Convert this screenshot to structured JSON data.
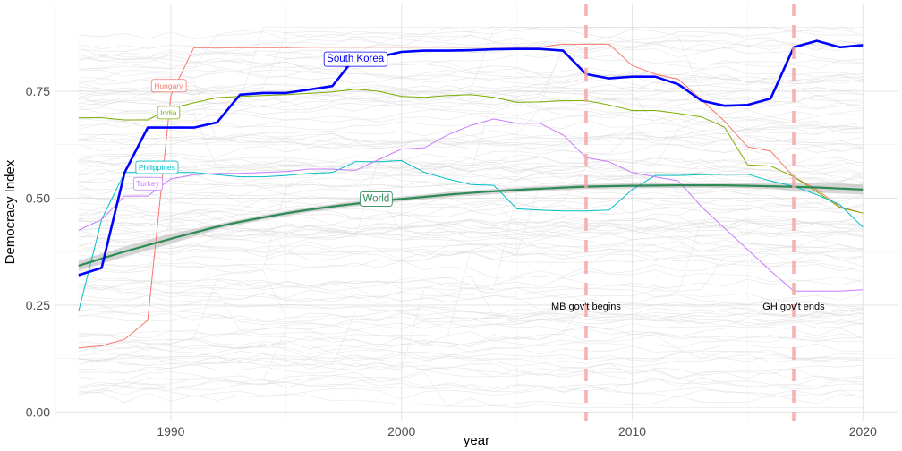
{
  "chart_data": {
    "type": "line",
    "title": "",
    "xlabel": "year",
    "ylabel": "Democracy Index",
    "xlim": [
      1985,
      2021.5
    ],
    "ylim": [
      -0.02,
      0.955
    ],
    "x_ticks": [
      1990,
      2000,
      2010,
      2020
    ],
    "y_ticks": [
      0.0,
      0.25,
      0.5,
      0.75
    ],
    "y_tick_labels": [
      "0.00",
      "0.25",
      "0.50",
      "0.75"
    ],
    "grid": true,
    "legend": "none",
    "colors": {
      "south_korea": "#0000ff",
      "world": "#2e8b57",
      "hungary": "#f8766d",
      "india": "#7cae00",
      "philippines": "#00bfc4",
      "turkey": "#c77cff",
      "background": "#e3e3e3",
      "vline": "#f4a6a6"
    },
    "series": [
      {
        "name": "South Korea",
        "color": "#0000ff",
        "highlight": true,
        "x": [
          1986,
          1987,
          1988,
          1989,
          1990,
          1991,
          1992,
          1993,
          1994,
          1995,
          1996,
          1997,
          1998,
          1999,
          2000,
          2001,
          2002,
          2003,
          2004,
          2005,
          2006,
          2007,
          2008,
          2009,
          2010,
          2011,
          2012,
          2013,
          2014,
          2015,
          2016,
          2017,
          2018,
          2019,
          2020
        ],
        "values": [
          0.32,
          0.337,
          0.56,
          0.665,
          0.665,
          0.665,
          0.677,
          0.742,
          0.746,
          0.746,
          0.754,
          0.762,
          0.83,
          0.83,
          0.842,
          0.845,
          0.845,
          0.846,
          0.848,
          0.849,
          0.849,
          0.845,
          0.79,
          0.78,
          0.784,
          0.784,
          0.766,
          0.728,
          0.716,
          0.718,
          0.733,
          0.853,
          0.868,
          0.853,
          0.858
        ]
      },
      {
        "name": "Hungary",
        "color": "#f8766d",
        "x": [
          1986,
          1987,
          1988,
          1989,
          1990,
          1991,
          1992,
          1993,
          1994,
          1995,
          1996,
          1997,
          1998,
          1999,
          2000,
          2001,
          2002,
          2003,
          2004,
          2005,
          2006,
          2007,
          2008,
          2009,
          2010,
          2011,
          2012,
          2013,
          2014,
          2015,
          2016,
          2017,
          2018,
          2019,
          2020
        ],
        "values": [
          0.15,
          0.155,
          0.17,
          0.215,
          0.74,
          0.852,
          0.852,
          0.852,
          0.852,
          0.852,
          0.853,
          0.853,
          0.853,
          0.853,
          0.853,
          0.853,
          0.853,
          0.853,
          0.853,
          0.853,
          0.853,
          0.86,
          0.86,
          0.86,
          0.81,
          0.79,
          0.778,
          0.73,
          0.68,
          0.62,
          0.61,
          0.55,
          0.52,
          0.48,
          0.465
        ]
      },
      {
        "name": "India",
        "color": "#7cae00",
        "x": [
          1986,
          1987,
          1988,
          1989,
          1990,
          1991,
          1992,
          1993,
          1994,
          1995,
          1996,
          1997,
          1998,
          1999,
          2000,
          2001,
          2002,
          2003,
          2004,
          2005,
          2006,
          2007,
          2008,
          2009,
          2010,
          2011,
          2012,
          2013,
          2014,
          2015,
          2016,
          2017,
          2018,
          2019,
          2020
        ],
        "values": [
          0.688,
          0.688,
          0.683,
          0.683,
          0.71,
          0.723,
          0.735,
          0.738,
          0.74,
          0.742,
          0.745,
          0.748,
          0.755,
          0.75,
          0.738,
          0.736,
          0.74,
          0.742,
          0.736,
          0.724,
          0.725,
          0.728,
          0.728,
          0.718,
          0.705,
          0.705,
          0.698,
          0.69,
          0.666,
          0.578,
          0.575,
          0.55,
          0.515,
          0.478,
          0.465
        ]
      },
      {
        "name": "Philippines",
        "color": "#00bfc4",
        "x": [
          1986,
          1987,
          1988,
          1989,
          1990,
          1991,
          1992,
          1993,
          1994,
          1995,
          1996,
          1997,
          1998,
          1999,
          2000,
          2001,
          2002,
          2003,
          2004,
          2005,
          2006,
          2007,
          2008,
          2009,
          2010,
          2011,
          2012,
          2013,
          2014,
          2015,
          2016,
          2017,
          2018,
          2019,
          2020
        ],
        "values": [
          0.235,
          0.45,
          0.56,
          0.56,
          0.56,
          0.56,
          0.555,
          0.55,
          0.55,
          0.553,
          0.558,
          0.56,
          0.585,
          0.585,
          0.588,
          0.56,
          0.545,
          0.532,
          0.53,
          0.475,
          0.472,
          0.47,
          0.47,
          0.472,
          0.52,
          0.553,
          0.553,
          0.555,
          0.556,
          0.556,
          0.54,
          0.528,
          0.508,
          0.485,
          0.432
        ]
      },
      {
        "name": "Turkey",
        "color": "#c77cff",
        "x": [
          1986,
          1987,
          1988,
          1989,
          1990,
          1991,
          1992,
          1993,
          1994,
          1995,
          1996,
          1997,
          1998,
          1999,
          2000,
          2001,
          2002,
          2003,
          2004,
          2005,
          2006,
          2007,
          2008,
          2009,
          2010,
          2011,
          2012,
          2013,
          2014,
          2015,
          2016,
          2017,
          2018,
          2019,
          2020
        ],
        "values": [
          0.425,
          0.45,
          0.505,
          0.505,
          0.545,
          0.555,
          0.558,
          0.558,
          0.56,
          0.562,
          0.568,
          0.568,
          0.565,
          0.59,
          0.615,
          0.618,
          0.648,
          0.67,
          0.685,
          0.675,
          0.675,
          0.648,
          0.595,
          0.585,
          0.56,
          0.55,
          0.54,
          0.48,
          0.43,
          0.38,
          0.33,
          0.283,
          0.283,
          0.283,
          0.286
        ]
      },
      {
        "name": "World",
        "color": "#2e8b57",
        "smooth": true,
        "x": [
          1986,
          1988,
          1990,
          1992,
          1994,
          1996,
          1998,
          2000,
          2002,
          2004,
          2006,
          2008,
          2010,
          2012,
          2014,
          2016,
          2018,
          2020
        ],
        "values": [
          0.342,
          0.375,
          0.405,
          0.433,
          0.455,
          0.473,
          0.487,
          0.498,
          0.508,
          0.516,
          0.522,
          0.527,
          0.529,
          0.53,
          0.53,
          0.528,
          0.525,
          0.52
        ]
      }
    ],
    "annotations": [
      {
        "text": "South Korea",
        "x": 1998,
        "y": 0.825,
        "color": "#0000ff"
      },
      {
        "text": "Hungary",
        "x": 1989.9,
        "y": 0.763,
        "color": "#f8766d"
      },
      {
        "text": "India",
        "x": 1989.9,
        "y": 0.7,
        "color": "#7cae00"
      },
      {
        "text": "Philippines",
        "x": 1989.4,
        "y": 0.572,
        "color": "#00bfc4"
      },
      {
        "text": "Turkey",
        "x": 1989.0,
        "y": 0.534,
        "color": "#c77cff"
      },
      {
        "text": "World",
        "x": 1998.9,
        "y": 0.498,
        "color": "#2e8b57"
      }
    ],
    "vlines": [
      {
        "x": 2008,
        "label": "MB gov't begins",
        "label_y": 0.248
      },
      {
        "x": 2017,
        "label": "GH gov't ends",
        "label_y": 0.248
      }
    ]
  }
}
